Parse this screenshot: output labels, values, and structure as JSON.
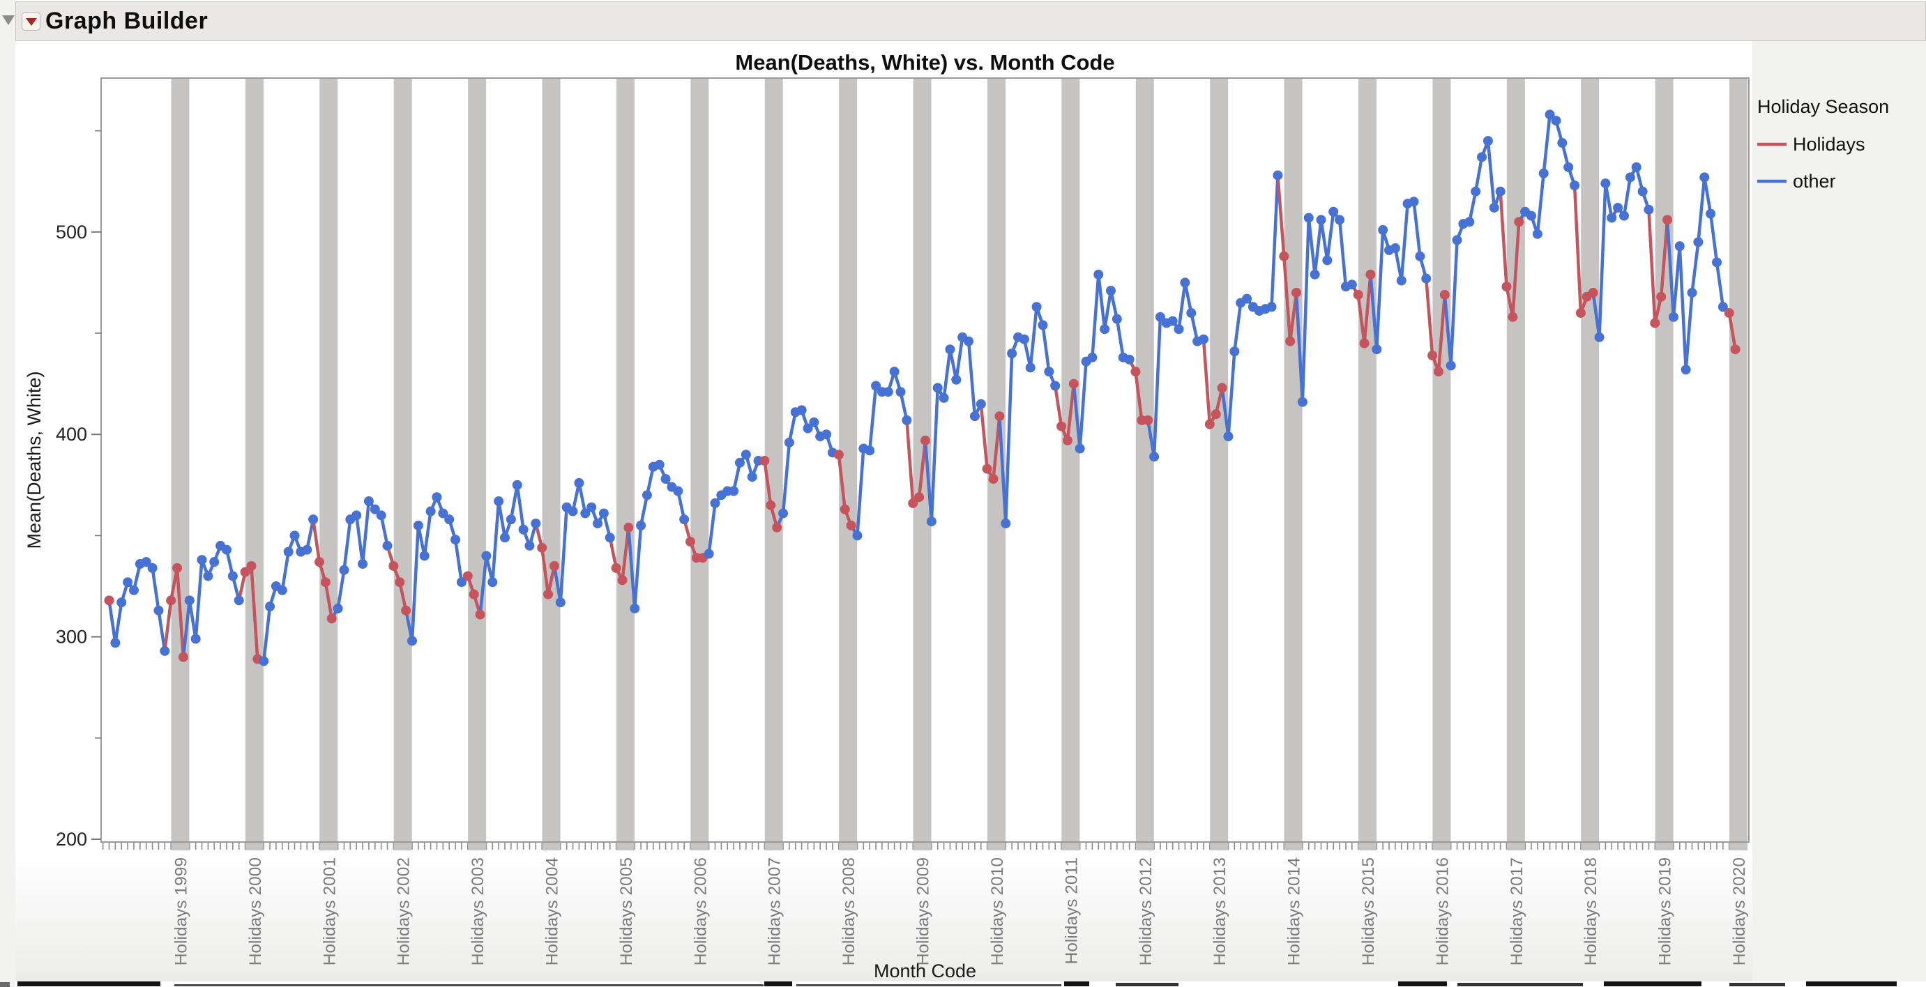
{
  "app": {
    "title": "Graph Builder"
  },
  "ui": {
    "titlebar_bg": "#E9E8E6",
    "hot_button_red": "#A3291D",
    "outer_triangle_gray": "#8C8C8C",
    "right_panel_bg": "#F2F2F1",
    "plot_frame_color": "#9B9B9B",
    "tick_color": "#8A8A8A",
    "axis_label_gray": "#7B7B7B",
    "text_dark": "#111111"
  },
  "chart_data": {
    "type": "line",
    "title": "Mean(Deaths, White) vs. Month Code",
    "ylabel": "Mean(Deaths, White)",
    "xlabel": "Month Code",
    "ylim": [
      200,
      565
    ],
    "y_major_ticks": [
      200,
      300,
      400,
      500
    ],
    "y_minor_ticks": [
      250,
      350,
      450,
      550
    ],
    "x_start": "January 1998",
    "x_end": "December 2019",
    "frequency": "monthly",
    "grid": false,
    "band_color": "#C5C4C2",
    "band_note": "gray vertical band over each Dec-Jan holiday span",
    "holiday_months": [
      11,
      12,
      1
    ],
    "legend": {
      "title": "Holiday Season",
      "position": "right-top",
      "entries": [
        {
          "label": "Holidays",
          "color": "#C5545C"
        },
        {
          "label": "other",
          "color": "#4671D5"
        }
      ]
    },
    "x_tick_labels": [
      "Holidays 1999",
      "Holidays 2000",
      "Holidays 2001",
      "Holidays 2002",
      "Holidays 2003",
      "Holidays 2004",
      "Holidays 2005",
      "Holidays 2006",
      "Holidays 2007",
      "Holidays 2008",
      "Holidays 2009",
      "Holidays 2010",
      "Holidays 2011",
      "Holidays 2012",
      "Holidays 2013",
      "Holidays 2014",
      "Holidays 2015",
      "Holidays 2016",
      "Holidays 2017",
      "Holidays 2018",
      "Holidays 2019",
      "Holidays 2020"
    ],
    "series": [
      {
        "name": "Mean(Deaths, White)",
        "values": [
          318,
          297,
          317,
          327,
          323,
          336,
          337,
          334,
          313,
          293,
          318,
          334,
          290,
          318,
          299,
          338,
          330,
          337,
          345,
          343,
          330,
          318,
          332,
          335,
          289,
          288,
          315,
          325,
          323,
          342,
          350,
          342,
          343,
          358,
          337,
          327,
          309,
          314,
          333,
          358,
          360,
          336,
          367,
          363,
          360,
          345,
          335,
          327,
          313,
          298,
          355,
          340,
          362,
          369,
          361,
          358,
          348,
          327,
          330,
          321,
          311,
          340,
          327,
          367,
          349,
          358,
          375,
          353,
          345,
          356,
          344,
          321,
          335,
          317,
          364,
          362,
          376,
          361,
          364,
          356,
          361,
          349,
          334,
          328,
          354,
          314,
          355,
          370,
          384,
          385,
          378,
          374,
          372,
          358,
          347,
          339,
          339,
          341,
          366,
          370,
          372,
          372,
          386,
          390,
          379,
          387,
          387,
          365,
          354,
          361,
          396,
          411,
          412,
          403,
          406,
          399,
          400,
          391,
          390,
          363,
          355,
          350,
          393,
          392,
          424,
          421,
          421,
          431,
          421,
          407,
          366,
          369,
          397,
          357,
          423,
          418,
          442,
          427,
          448,
          446,
          409,
          415,
          383,
          378,
          409,
          356,
          440,
          448,
          447,
          433,
          463,
          454,
          431,
          424,
          404,
          397,
          425,
          393,
          436,
          438,
          479,
          452,
          471,
          457,
          438,
          437,
          431,
          407,
          407,
          389,
          458,
          455,
          456,
          452,
          475,
          460,
          446,
          447,
          405,
          410,
          423,
          399,
          441,
          465,
          467,
          463,
          461,
          462,
          463,
          528,
          488,
          446,
          470,
          416,
          507,
          479,
          506,
          486,
          510,
          506,
          473,
          474,
          469,
          445,
          479,
          442,
          501,
          491,
          492,
          476,
          514,
          515,
          488,
          477,
          439,
          431,
          469,
          434,
          496,
          504,
          505,
          520,
          537,
          545,
          512,
          520,
          473,
          458,
          505,
          510,
          508,
          499,
          529,
          558,
          555,
          544,
          532,
          523,
          460,
          468,
          470,
          448,
          524,
          507,
          512,
          508,
          527,
          532,
          520,
          511,
          455,
          468,
          506,
          458,
          493,
          432,
          470,
          495,
          527,
          509,
          485,
          463,
          460,
          442
        ]
      }
    ]
  }
}
